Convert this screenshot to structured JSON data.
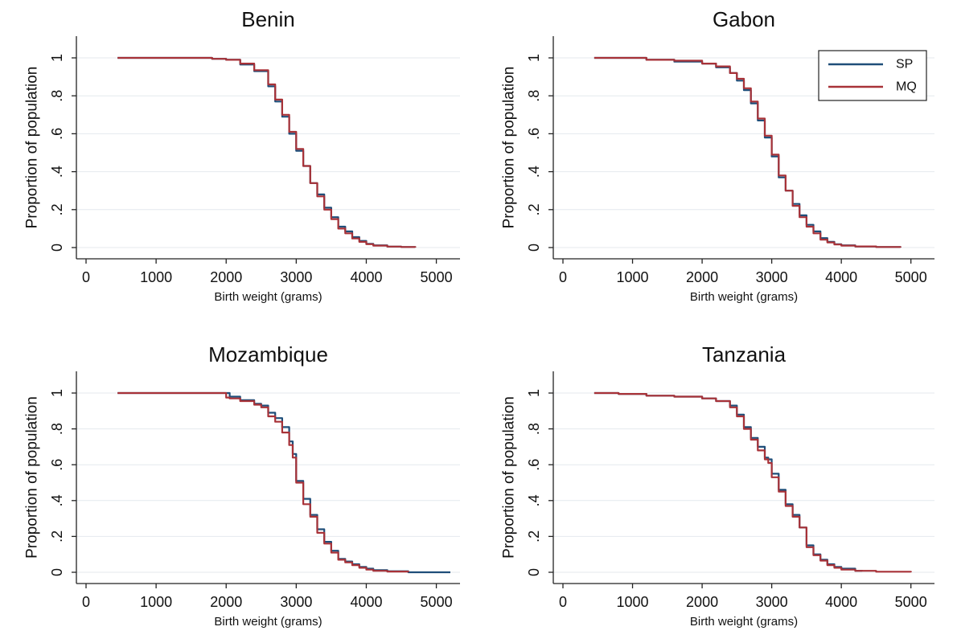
{
  "colors": {
    "SP": "#1f4e79",
    "MQ": "#a83238",
    "grid": "#e4e9ee",
    "axis": "#222222"
  },
  "chart_data": [
    {
      "type": "line",
      "title": "Benin",
      "xlabel": "Birth weight (grams)",
      "ylabel": "Proportion of population",
      "xlim": [
        0,
        5200
      ],
      "ylim": [
        0,
        1
      ],
      "xticks": [
        "0",
        "1000",
        "2000",
        "3000",
        "4000",
        "5000"
      ],
      "yticks": [
        "0",
        ".2",
        ".4",
        ".6",
        ".8",
        "1"
      ],
      "legend": null,
      "series": [
        {
          "name": "SP",
          "x": [
            450,
            1200,
            1800,
            2000,
            2200,
            2400,
            2600,
            2700,
            2800,
            2900,
            3000,
            3100,
            3200,
            3300,
            3400,
            3500,
            3600,
            3700,
            3800,
            3900,
            4000,
            4100,
            4300,
            4500,
            4700
          ],
          "y": [
            1.0,
            1.0,
            0.995,
            0.99,
            0.965,
            0.93,
            0.85,
            0.77,
            0.69,
            0.6,
            0.51,
            0.43,
            0.34,
            0.28,
            0.21,
            0.16,
            0.11,
            0.085,
            0.055,
            0.035,
            0.02,
            0.012,
            0.005,
            0.003,
            0.0
          ]
        },
        {
          "name": "MQ",
          "x": [
            450,
            1200,
            1800,
            2000,
            2200,
            2400,
            2600,
            2700,
            2800,
            2900,
            3000,
            3100,
            3200,
            3300,
            3400,
            3500,
            3600,
            3700,
            3800,
            3900,
            4000,
            4100,
            4300,
            4500,
            4700
          ],
          "y": [
            1.0,
            1.0,
            0.995,
            0.99,
            0.97,
            0.935,
            0.86,
            0.78,
            0.7,
            0.61,
            0.52,
            0.43,
            0.34,
            0.27,
            0.2,
            0.15,
            0.1,
            0.075,
            0.048,
            0.03,
            0.018,
            0.01,
            0.005,
            0.003,
            0.0
          ]
        }
      ]
    },
    {
      "type": "line",
      "title": "Gabon",
      "xlabel": "Birth weight (grams)",
      "ylabel": "Proportion of population",
      "xlim": [
        0,
        5200
      ],
      "ylim": [
        0,
        1
      ],
      "xticks": [
        "0",
        "1000",
        "2000",
        "3000",
        "4000",
        "5000"
      ],
      "yticks": [
        "0",
        ".2",
        ".4",
        ".6",
        ".8",
        "1"
      ],
      "legend": {
        "position": "top-right",
        "entries": [
          "SP",
          "MQ"
        ]
      },
      "series": [
        {
          "name": "SP",
          "x": [
            450,
            800,
            1200,
            1600,
            2000,
            2200,
            2400,
            2500,
            2600,
            2700,
            2800,
            2900,
            3000,
            3100,
            3200,
            3300,
            3400,
            3500,
            3600,
            3700,
            3800,
            3900,
            4000,
            4200,
            4500,
            4850
          ],
          "y": [
            1.0,
            1.0,
            0.99,
            0.98,
            0.97,
            0.95,
            0.92,
            0.88,
            0.83,
            0.76,
            0.67,
            0.58,
            0.48,
            0.37,
            0.3,
            0.23,
            0.17,
            0.12,
            0.085,
            0.05,
            0.03,
            0.018,
            0.012,
            0.006,
            0.003,
            0.0
          ]
        },
        {
          "name": "MQ",
          "x": [
            450,
            800,
            1200,
            1600,
            2000,
            2200,
            2400,
            2500,
            2600,
            2700,
            2800,
            2900,
            3000,
            3100,
            3200,
            3300,
            3400,
            3500,
            3600,
            3700,
            3800,
            3900,
            4000,
            4200,
            4500,
            4850
          ],
          "y": [
            1.0,
            1.0,
            0.99,
            0.985,
            0.97,
            0.955,
            0.92,
            0.89,
            0.84,
            0.77,
            0.68,
            0.59,
            0.49,
            0.38,
            0.3,
            0.22,
            0.16,
            0.11,
            0.075,
            0.042,
            0.027,
            0.016,
            0.01,
            0.006,
            0.003,
            0.0
          ]
        }
      ]
    },
    {
      "type": "line",
      "title": "Mozambique",
      "xlabel": "Birth weight (grams)",
      "ylabel": "Proportion of population",
      "xlim": [
        0,
        5200
      ],
      "ylim": [
        0,
        1
      ],
      "xticks": [
        "0",
        "1000",
        "2000",
        "3000",
        "4000",
        "5000"
      ],
      "yticks": [
        "0",
        ".2",
        ".4",
        ".6",
        ".8",
        "1"
      ],
      "legend": null,
      "series": [
        {
          "name": "SP",
          "x": [
            450,
            1400,
            2000,
            2050,
            2200,
            2400,
            2500,
            2600,
            2700,
            2800,
            2900,
            2950,
            3000,
            3100,
            3200,
            3300,
            3400,
            3500,
            3600,
            3700,
            3800,
            3900,
            4000,
            4100,
            4300,
            4600,
            5200
          ],
          "y": [
            1.0,
            1.0,
            1.0,
            0.98,
            0.96,
            0.94,
            0.93,
            0.89,
            0.86,
            0.81,
            0.73,
            0.66,
            0.51,
            0.41,
            0.32,
            0.24,
            0.17,
            0.12,
            0.075,
            0.06,
            0.045,
            0.03,
            0.02,
            0.012,
            0.006,
            0.0,
            0.0
          ]
        },
        {
          "name": "MQ",
          "x": [
            450,
            1400,
            2000,
            2050,
            2200,
            2400,
            2500,
            2600,
            2700,
            2800,
            2900,
            2950,
            3000,
            3100,
            3200,
            3300,
            3400,
            3500,
            3600,
            3700,
            3800,
            3900,
            4000,
            4100,
            4300,
            4600
          ],
          "y": [
            1.0,
            1.0,
            0.975,
            0.97,
            0.955,
            0.935,
            0.92,
            0.87,
            0.84,
            0.78,
            0.71,
            0.64,
            0.5,
            0.38,
            0.31,
            0.22,
            0.16,
            0.11,
            0.07,
            0.055,
            0.04,
            0.025,
            0.015,
            0.008,
            0.004,
            0.0
          ]
        }
      ]
    },
    {
      "type": "line",
      "title": "Tanzania",
      "xlabel": "Birth weight (grams)",
      "ylabel": "Proportion of population",
      "xlim": [
        0,
        5200
      ],
      "ylim": [
        0,
        1
      ],
      "xticks": [
        "0",
        "1000",
        "2000",
        "3000",
        "4000",
        "5000"
      ],
      "yticks": [
        "0",
        ".2",
        ".4",
        ".6",
        ".8",
        "1"
      ],
      "legend": null,
      "series": [
        {
          "name": "SP",
          "x": [
            450,
            800,
            1200,
            1600,
            2000,
            2200,
            2400,
            2500,
            2600,
            2700,
            2800,
            2900,
            2950,
            3000,
            3100,
            3200,
            3300,
            3400,
            3500,
            3600,
            3700,
            3800,
            3900,
            4000,
            4200,
            4300
          ],
          "y": [
            1.0,
            0.995,
            0.985,
            0.98,
            0.97,
            0.955,
            0.93,
            0.88,
            0.81,
            0.75,
            0.7,
            0.64,
            0.63,
            0.55,
            0.46,
            0.38,
            0.32,
            0.25,
            0.15,
            0.1,
            0.07,
            0.045,
            0.03,
            0.02,
            0.008,
            0.005
          ]
        },
        {
          "name": "MQ",
          "x": [
            450,
            800,
            1200,
            1600,
            2000,
            2200,
            2400,
            2500,
            2600,
            2700,
            2800,
            2900,
            2950,
            3000,
            3100,
            3200,
            3300,
            3400,
            3500,
            3600,
            3700,
            3800,
            3900,
            4000,
            4200,
            4500,
            5000
          ],
          "y": [
            1.0,
            0.995,
            0.985,
            0.98,
            0.97,
            0.955,
            0.92,
            0.87,
            0.8,
            0.74,
            0.68,
            0.63,
            0.61,
            0.53,
            0.45,
            0.37,
            0.31,
            0.25,
            0.14,
            0.095,
            0.065,
            0.04,
            0.025,
            0.015,
            0.008,
            0.003,
            0.0
          ]
        }
      ]
    }
  ]
}
